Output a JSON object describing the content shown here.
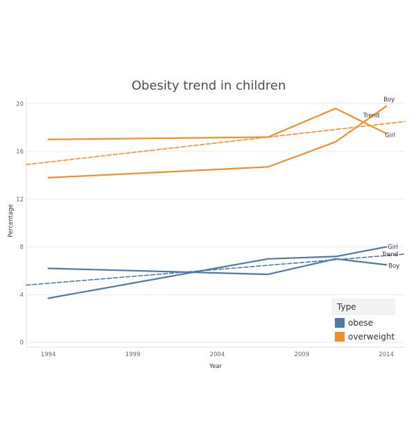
{
  "chart_data": {
    "type": "line",
    "title": "Obesity trend in children",
    "xlabel": "Year",
    "ylabel": "Percentage",
    "xlim": [
      1992.7,
      2015.1
    ],
    "ylim": [
      -0.4,
      20.6
    ],
    "x_ticks": [
      "1994",
      "1999",
      "2004",
      "2009",
      "2014"
    ],
    "y_ticks": [
      "0",
      "4",
      "8",
      "12",
      "16",
      "20"
    ],
    "grid": "horizontal",
    "legend": {
      "title": "Type",
      "placement": "bottom-right",
      "items": [
        {
          "label": "obese",
          "color": "#4e79a7"
        },
        {
          "label": "overweight",
          "color": "#f28e2b"
        }
      ]
    },
    "series": [
      {
        "type": "overweight",
        "label": "Boy",
        "style": "solid",
        "color": "#f28e2b",
        "points": [
          [
            1994,
            13.8
          ],
          [
            2007,
            14.7
          ],
          [
            2011,
            16.8
          ],
          [
            2014,
            19.8
          ]
        ]
      },
      {
        "type": "overweight",
        "label": "Girl",
        "style": "solid",
        "color": "#f28e2b",
        "points": [
          [
            1994,
            17.0
          ],
          [
            2007,
            17.2
          ],
          [
            2011,
            19.6
          ],
          [
            2014,
            17.5
          ]
        ]
      },
      {
        "type": "overweight",
        "label": "Trend",
        "style": "dashed",
        "color": "#f28e2b",
        "points": [
          [
            1992.7,
            14.9
          ],
          [
            2015.1,
            18.5
          ]
        ]
      },
      {
        "type": "obese",
        "label": "Girl",
        "style": "solid",
        "color": "#4e79a7",
        "points": [
          [
            1994,
            3.7
          ],
          [
            2007,
            7.0
          ],
          [
            2011,
            7.2
          ],
          [
            2014,
            8.0
          ]
        ]
      },
      {
        "type": "obese",
        "label": "Boy",
        "style": "solid",
        "color": "#4e79a7",
        "points": [
          [
            1994,
            6.2
          ],
          [
            2007,
            5.7
          ],
          [
            2011,
            7.0
          ],
          [
            2014,
            6.5
          ]
        ]
      },
      {
        "type": "obese",
        "label": "Trend",
        "style": "dashed",
        "color": "#4e79a7",
        "points": [
          [
            1992.7,
            4.8
          ],
          [
            2015.1,
            7.4
          ]
        ]
      }
    ]
  }
}
